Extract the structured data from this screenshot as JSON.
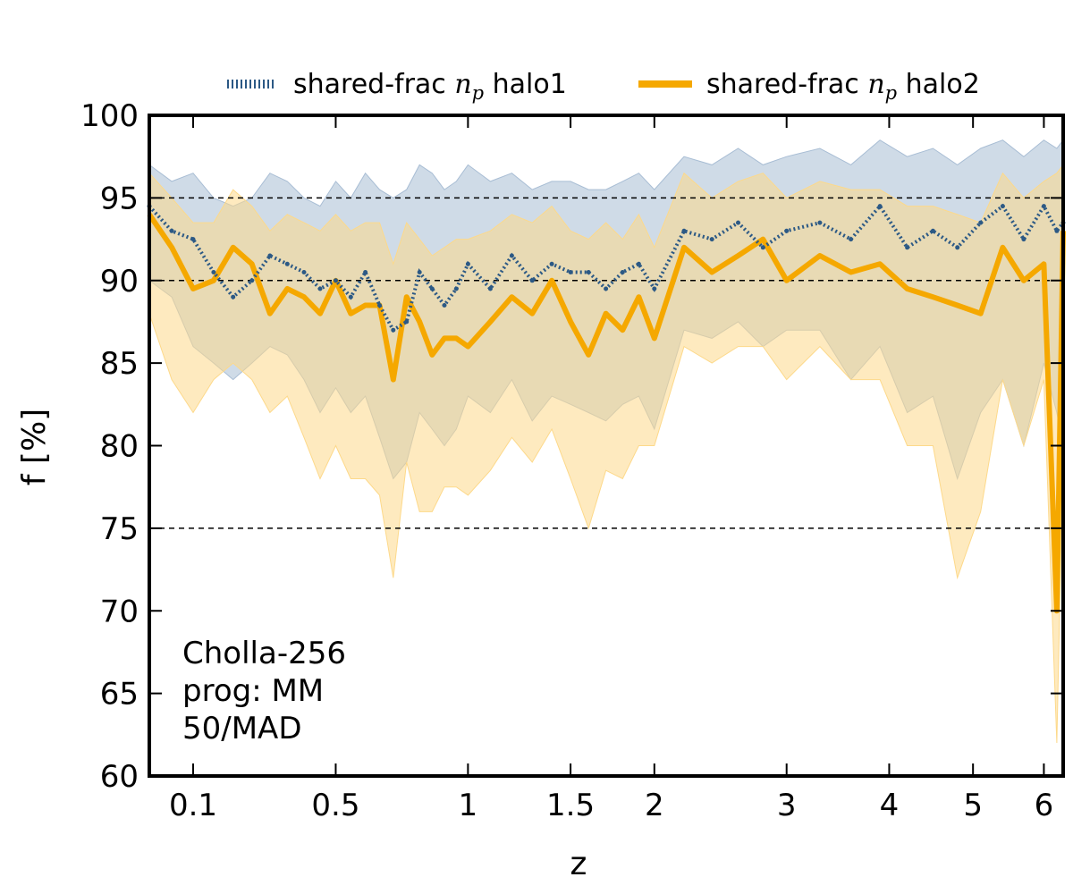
{
  "chart_data": {
    "type": "line",
    "xlabel": "z",
    "ylabel": "f [%]",
    "ylim": [
      60,
      100
    ],
    "x_axis_scale": "log(1+z)",
    "x_ticks": [
      0.1,
      0.5,
      1,
      1.5,
      2,
      3,
      4,
      5,
      6
    ],
    "x_tick_labels": [
      "0.1",
      "0.5",
      "1",
      "1.5",
      "2",
      "3",
      "4",
      "5",
      "6"
    ],
    "y_ticks": [
      60,
      65,
      70,
      75,
      80,
      85,
      90,
      95,
      100
    ],
    "y_tick_labels": [
      "60",
      "65",
      "70",
      "75",
      "80",
      "85",
      "90",
      "95",
      "100"
    ],
    "reference_lines": [
      95,
      90,
      75
    ],
    "legend_placement": "above-top-right",
    "annotation": [
      "Cholla-256",
      "prog: MM",
      "50/MAD"
    ],
    "colors": {
      "halo1": "#2c5985",
      "halo1_band": "#a8bdd4",
      "halo2": "#f5a800",
      "halo2_band": "#fdd98a"
    },
    "series": [
      {
        "name": "shared-frac n_p halo1",
        "legend_prefix": "shared-frac ",
        "legend_math": "n",
        "legend_sub": "p",
        "legend_suffix": " halo1",
        "style": "dotted",
        "x": [
          0.0,
          0.05,
          0.1,
          0.15,
          0.2,
          0.25,
          0.3,
          0.35,
          0.4,
          0.45,
          0.5,
          0.55,
          0.6,
          0.65,
          0.7,
          0.75,
          0.8,
          0.85,
          0.9,
          0.95,
          1.0,
          1.1,
          1.2,
          1.3,
          1.4,
          1.5,
          1.6,
          1.7,
          1.8,
          1.9,
          2.0,
          2.2,
          2.4,
          2.6,
          2.8,
          3.0,
          3.3,
          3.6,
          3.9,
          4.2,
          4.5,
          4.8,
          5.1,
          5.4,
          5.7,
          6.0,
          6.2,
          6.3
        ],
        "median": [
          94.5,
          93.0,
          92.5,
          90.5,
          89.0,
          90.0,
          91.5,
          91.0,
          90.5,
          89.5,
          90.0,
          89.0,
          90.5,
          88.5,
          87.0,
          87.5,
          90.5,
          89.5,
          88.5,
          89.5,
          91.0,
          89.5,
          91.5,
          90.0,
          91.0,
          90.5,
          90.5,
          89.5,
          90.5,
          91.0,
          89.5,
          93.0,
          92.5,
          93.5,
          92.0,
          93.0,
          93.5,
          92.5,
          94.5,
          92.0,
          93.0,
          92.0,
          93.5,
          94.5,
          92.5,
          94.5,
          93.0,
          93.5
        ],
        "upper": [
          97.0,
          96.0,
          96.5,
          95.0,
          94.5,
          95.0,
          96.5,
          96.0,
          95.0,
          94.5,
          96.0,
          95.0,
          96.5,
          95.5,
          95.0,
          95.5,
          97.0,
          96.5,
          95.5,
          96.0,
          97.0,
          96.0,
          96.5,
          95.5,
          96.0,
          96.0,
          95.5,
          95.5,
          96.0,
          96.5,
          95.5,
          97.5,
          97.0,
          98.0,
          97.0,
          97.5,
          98.0,
          97.0,
          98.5,
          97.5,
          98.0,
          97.0,
          98.0,
          98.5,
          97.5,
          98.5,
          98.0,
          98.5
        ],
        "lower": [
          90.0,
          89.0,
          86.0,
          85.0,
          84.0,
          85.0,
          86.0,
          85.5,
          84.0,
          82.0,
          83.5,
          82.0,
          83.0,
          80.5,
          78.0,
          79.0,
          82.0,
          81.0,
          80.0,
          81.0,
          83.0,
          82.0,
          84.0,
          81.5,
          83.0,
          82.5,
          82.0,
          81.5,
          82.5,
          83.0,
          81.0,
          87.0,
          86.5,
          87.5,
          86.0,
          87.0,
          87.0,
          84.0,
          86.0,
          82.0,
          83.0,
          78.0,
          82.0,
          84.0,
          80.0,
          85.0,
          82.0,
          80.0
        ]
      },
      {
        "name": "shared-frac n_p halo2",
        "legend_prefix": "shared-frac ",
        "legend_math": "n",
        "legend_sub": "p",
        "legend_suffix": " halo2",
        "style": "solid",
        "x": [
          0.0,
          0.05,
          0.1,
          0.15,
          0.2,
          0.25,
          0.3,
          0.35,
          0.4,
          0.45,
          0.5,
          0.55,
          0.6,
          0.65,
          0.7,
          0.75,
          0.8,
          0.85,
          0.9,
          0.95,
          1.0,
          1.1,
          1.2,
          1.3,
          1.4,
          1.5,
          1.6,
          1.7,
          1.8,
          1.9,
          2.0,
          2.2,
          2.4,
          2.6,
          2.8,
          3.0,
          3.3,
          3.6,
          3.9,
          4.2,
          4.5,
          4.8,
          5.1,
          5.4,
          5.7,
          6.0,
          6.2,
          6.3
        ],
        "median": [
          94.0,
          92.0,
          89.5,
          90.0,
          92.0,
          91.0,
          88.0,
          89.5,
          89.0,
          88.0,
          90.0,
          88.0,
          88.5,
          88.5,
          84.0,
          89.0,
          87.5,
          85.5,
          86.5,
          86.5,
          86.0,
          87.5,
          89.0,
          88.0,
          90.0,
          87.5,
          85.5,
          88.0,
          87.0,
          89.0,
          86.5,
          92.0,
          90.5,
          91.5,
          92.5,
          90.0,
          91.5,
          90.5,
          91.0,
          89.5,
          89.0,
          88.5,
          88.0,
          92.0,
          90.0,
          91.0,
          70.0,
          93.0
        ],
        "upper": [
          96.5,
          95.0,
          93.5,
          93.5,
          95.5,
          94.5,
          93.0,
          94.0,
          93.5,
          93.0,
          94.0,
          93.0,
          93.5,
          93.5,
          91.0,
          93.5,
          92.5,
          91.5,
          92.0,
          92.5,
          92.5,
          93.0,
          94.0,
          93.5,
          94.5,
          93.0,
          92.5,
          93.5,
          92.5,
          94.0,
          92.0,
          96.5,
          95.0,
          96.0,
          96.5,
          95.0,
          96.0,
          95.5,
          95.5,
          94.5,
          94.5,
          94.0,
          93.5,
          96.5,
          95.0,
          96.0,
          96.5,
          97.0
        ],
        "lower": [
          88.0,
          84.0,
          82.0,
          84.0,
          85.0,
          84.0,
          82.0,
          83.0,
          80.5,
          78.0,
          80.0,
          78.0,
          78.0,
          77.0,
          72.0,
          79.0,
          76.0,
          76.0,
          77.5,
          77.5,
          77.0,
          78.5,
          80.5,
          79.0,
          81.0,
          78.0,
          75.0,
          78.5,
          78.0,
          80.0,
          80.0,
          86.0,
          85.0,
          86.0,
          86.0,
          84.0,
          86.0,
          84.0,
          84.0,
          80.0,
          80.0,
          72.0,
          76.0,
          84.0,
          80.0,
          84.0,
          62.0,
          80.0
        ]
      }
    ]
  }
}
